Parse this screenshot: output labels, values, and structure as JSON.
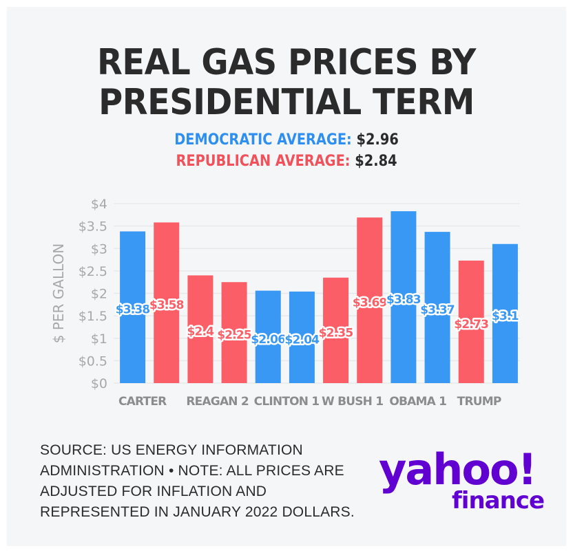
{
  "title_line1": "REAL GAS PRICES BY",
  "title_line2": "PRESIDENTIAL TERM",
  "averages": {
    "dem_label": "DEMOCRATIC AVERAGE:",
    "dem_value": "$2.96",
    "rep_label": "REPUBLICAN AVERAGE:",
    "rep_value": "$2.84"
  },
  "source": "SOURCE: US ENERGY INFORMATION ADMINISTRATION • NOTE: ALL PRICES ARE ADJUSTED FOR INFLATION AND REPRESENTED IN JANUARY 2022 DOLLARS.",
  "logo": {
    "word1": "yahoo!",
    "word2": "finance"
  },
  "colors": {
    "democratic": "#3a98f5",
    "republican": "#fb5e66",
    "text": "#2b2b2b",
    "axis": "#a8a8a8",
    "grid": "#e6e8eb",
    "brand": "#6001d2"
  },
  "chart_data": {
    "type": "bar",
    "title": "REAL GAS PRICES BY PRESIDENTIAL TERM",
    "ylabel": "$ PER GALLON",
    "xlabel": "",
    "ylim": [
      0,
      4
    ],
    "yticks": [
      "$0",
      "$0.5",
      "$1",
      "$1.5",
      "$2",
      "$2.5",
      "$3",
      "$3.5",
      "$4"
    ],
    "ytick_values": [
      0,
      0.5,
      1,
      1.5,
      2,
      2.5,
      3,
      3.5,
      4
    ],
    "x_tick_labels": [
      "CARTER",
      "REAGAN 2",
      "CLINTON 1",
      "W BUSH 1",
      "OBAMA 1",
      "TRUMP"
    ],
    "grid": true,
    "bars": [
      {
        "party": "democratic",
        "value": 3.38,
        "label": "$3.38"
      },
      {
        "party": "republican",
        "value": 3.58,
        "label": "$3.58"
      },
      {
        "party": "republican",
        "value": 2.4,
        "label": "$2.4"
      },
      {
        "party": "republican",
        "value": 2.25,
        "label": "$2.25"
      },
      {
        "party": "democratic",
        "value": 2.06,
        "label": "$2.06"
      },
      {
        "party": "democratic",
        "value": 2.04,
        "label": "$2.04"
      },
      {
        "party": "republican",
        "value": 2.35,
        "label": "$2.35"
      },
      {
        "party": "republican",
        "value": 3.69,
        "label": "$3.69"
      },
      {
        "party": "democratic",
        "value": 3.83,
        "label": "$3.83"
      },
      {
        "party": "democratic",
        "value": 3.37,
        "label": "$3.37"
      },
      {
        "party": "republican",
        "value": 2.73,
        "label": "$2.73"
      },
      {
        "party": "democratic",
        "value": 3.1,
        "label": "$3.1"
      }
    ]
  }
}
